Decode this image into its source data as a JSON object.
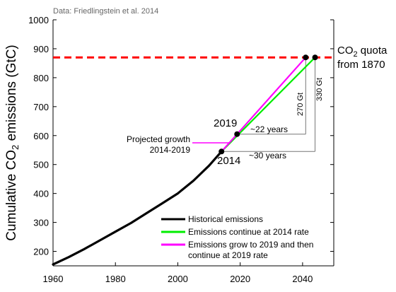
{
  "chart_data": {
    "type": "line",
    "source_note": "Data: Friedlingstein et al. 2014",
    "ylabel_prefix": "Cumulative CO",
    "ylabel_sub": "2",
    "ylabel_suffix": " emissions (GtC)",
    "xlim": [
      1960,
      2050
    ],
    "ylim": [
      150,
      1000
    ],
    "xticks": [
      1960,
      1980,
      2000,
      2020,
      2040
    ],
    "yticks": [
      200,
      300,
      400,
      500,
      600,
      700,
      800,
      900,
      1000
    ],
    "quota": {
      "value": 870,
      "label_line1_prefix": "CO",
      "label_line1_sub": "2",
      "label_line1_suffix": " quota",
      "label_line2": "from 1870",
      "color": "#ff0000"
    },
    "series": [
      {
        "name": "Historical emissions",
        "color": "#000000",
        "x": [
          1960,
          1965,
          1970,
          1975,
          1980,
          1985,
          1990,
          1995,
          2000,
          2005,
          2010,
          2014
        ],
        "y": [
          155,
          180,
          208,
          238,
          268,
          298,
          332,
          366,
          400,
          444,
          496,
          545
        ]
      },
      {
        "name": "Emissions continue at 2014 rate",
        "color": "#00ee00",
        "x": [
          2014,
          2044
        ],
        "y": [
          545,
          870
        ]
      },
      {
        "name_line1": "Emissions grow to 2019 and then",
        "name_line2": "continue at 2019 rate",
        "color": "#ff00ff",
        "x": [
          2014,
          2019,
          2041
        ],
        "y": [
          545,
          605,
          870
        ]
      }
    ],
    "points": [
      {
        "x": 2014,
        "y": 545,
        "label": "2014"
      },
      {
        "x": 2019,
        "y": 605,
        "label": "2019"
      },
      {
        "x": 2041,
        "y": 870
      },
      {
        "x": 2044,
        "y": 870
      }
    ],
    "annotations": {
      "projected_growth_line1": "Projected growth",
      "projected_growth_line2": "2014-2019",
      "span_22": "~22 years",
      "span_30": "~30 years",
      "gt_270": "270 Gt",
      "gt_330": "330 Gt"
    },
    "legend_position": "bottom-right"
  }
}
